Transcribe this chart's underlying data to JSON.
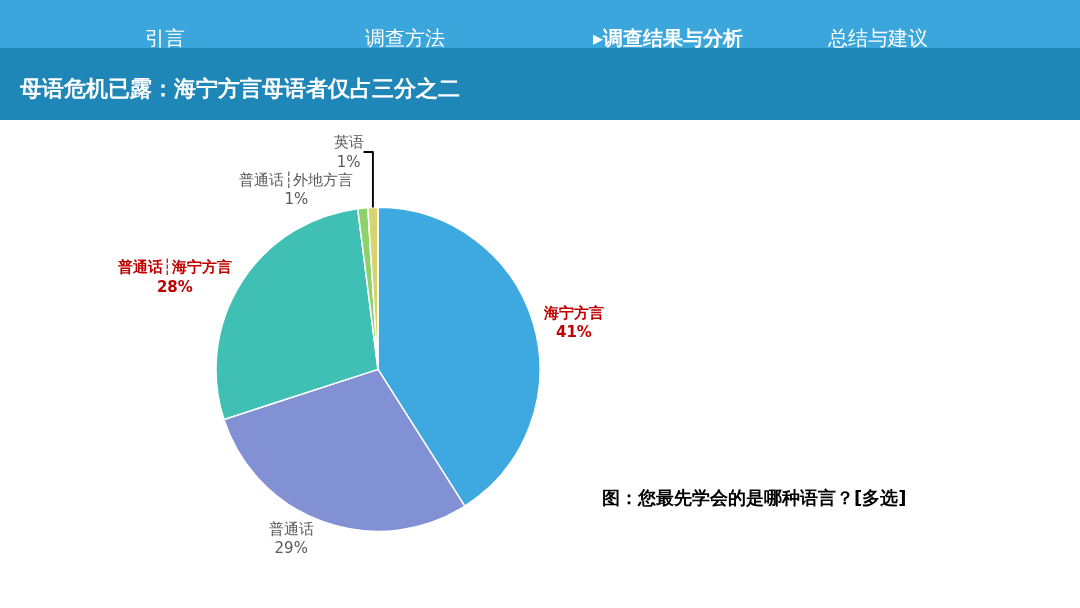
{
  "chart_data": {
    "type": "pie",
    "title": "母语危机已露：海宁方言母语者仅占三分之二",
    "categories": [
      "海宁方言",
      "普通话",
      "普通话┆海宁方言",
      "普通话┆外地方言",
      "英语"
    ],
    "values": [
      41,
      29,
      28,
      1,
      1
    ],
    "value_labels": [
      "41%",
      "29%",
      "28%",
      "1%",
      "1%"
    ],
    "colors": [
      "#3ea8e0",
      "#8290d4",
      "#40bfb4",
      "#8ed16c",
      "#d6d46e"
    ],
    "legend": false,
    "annotations": [
      "引言",
      "调查方法",
      "▸调查结果与分析",
      "总结与建议",
      "图：您最先学会的是哪种语言？[多选]"
    ]
  }
}
